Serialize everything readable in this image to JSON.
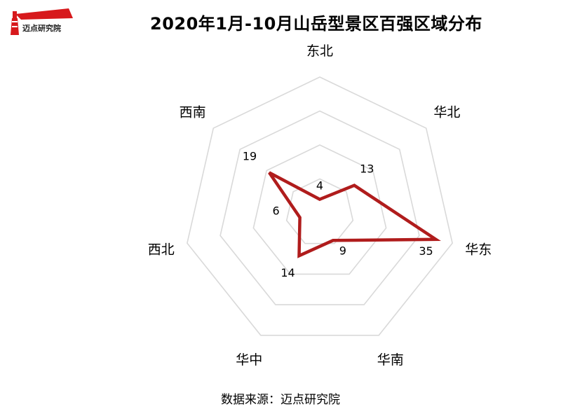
{
  "header": {
    "title": "2020年1月-10月山岳型景区百强区域分布",
    "logo_text": "迈点研究院"
  },
  "footer": {
    "source": "数据来源：迈点研究院"
  },
  "colors": {
    "series": "#b01c1c",
    "grid": "#d9d9d9"
  },
  "chart_data": {
    "type": "radar",
    "categories": [
      "东北",
      "华北",
      "华东",
      "华南",
      "华中",
      "西北",
      "西南"
    ],
    "values": [
      4,
      13,
      35,
      9,
      14,
      6,
      19
    ],
    "rlim": [
      0,
      40
    ],
    "rings": 4,
    "grid": true,
    "legend": "none"
  }
}
